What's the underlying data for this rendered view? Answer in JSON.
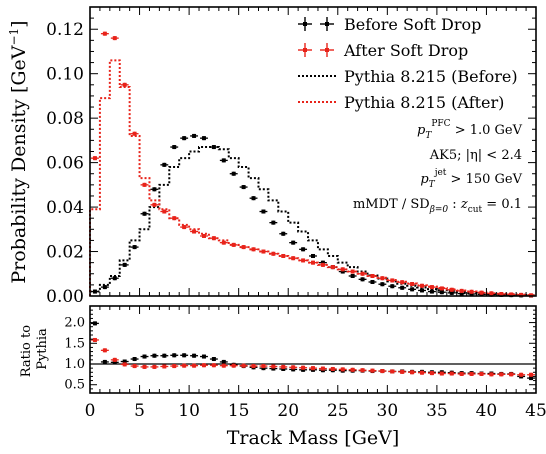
{
  "chart_data": [
    {
      "panel": "main",
      "type": "line",
      "xlabel": "Track Mass [GeV]",
      "ylabel": "Probability Density [GeV⁻¹]",
      "xlim": [
        0,
        45
      ],
      "ylim": [
        0,
        0.13
      ],
      "xticks": [
        "0",
        "5",
        "10",
        "15",
        "20",
        "25",
        "30",
        "35",
        "40",
        "45"
      ],
      "yticks": [
        "0.00",
        "0.02",
        "0.04",
        "0.06",
        "0.08",
        "0.10",
        "0.12"
      ],
      "legend_position": "top-right",
      "bin_edges": [
        0,
        1,
        2,
        3,
        4,
        5,
        6,
        7,
        8,
        9,
        10,
        11,
        12,
        13,
        14,
        15,
        16,
        17,
        18,
        19,
        20,
        21,
        22,
        23,
        24,
        25,
        26,
        27,
        28,
        29,
        30,
        31,
        32,
        33,
        34,
        35,
        36,
        37,
        38,
        39,
        40,
        41,
        42,
        43,
        44,
        45
      ],
      "series": [
        {
          "name": "Before Soft Drop",
          "style": "points",
          "color": "#000000",
          "values": [
            0.002,
            0.004,
            0.008,
            0.014,
            0.022,
            0.037,
            0.048,
            0.059,
            0.067,
            0.071,
            0.072,
            0.071,
            0.067,
            0.061,
            0.055,
            0.049,
            0.044,
            0.038,
            0.033,
            0.028,
            0.024,
            0.021,
            0.018,
            0.015,
            0.013,
            0.011,
            0.009,
            0.0075,
            0.0063,
            0.0053,
            0.0044,
            0.0037,
            0.003,
            0.0025,
            0.002,
            0.0017,
            0.0014,
            0.0011,
            0.0009,
            0.0007,
            0.0006,
            0.0005,
            0.0004,
            0.0003,
            0.0002
          ]
        },
        {
          "name": "After Soft Drop",
          "style": "points",
          "color": "#e8231a",
          "values": [
            0.062,
            0.118,
            0.116,
            0.095,
            0.073,
            0.05,
            0.041,
            0.038,
            0.035,
            0.031,
            0.029,
            0.027,
            0.026,
            0.024,
            0.023,
            0.022,
            0.021,
            0.02,
            0.019,
            0.018,
            0.017,
            0.016,
            0.015,
            0.014,
            0.013,
            0.012,
            0.011,
            0.01,
            0.009,
            0.008,
            0.007,
            0.0062,
            0.0054,
            0.0046,
            0.004,
            0.0034,
            0.0028,
            0.0023,
            0.0019,
            0.0015,
            0.0012,
            0.0009,
            0.0007,
            0.0005,
            0.0003
          ]
        },
        {
          "name": "Pythia 8.215 (Before)",
          "style": "dotted-step",
          "color": "#000000",
          "values": [
            0.002,
            0.005,
            0.009,
            0.016,
            0.025,
            0.03,
            0.04,
            0.05,
            0.058,
            0.062,
            0.065,
            0.067,
            0.067,
            0.066,
            0.062,
            0.058,
            0.053,
            0.048,
            0.043,
            0.038,
            0.033,
            0.029,
            0.025,
            0.021,
            0.018,
            0.015,
            0.013,
            0.011,
            0.0092,
            0.0078,
            0.0066,
            0.0055,
            0.0046,
            0.0038,
            0.0031,
            0.0026,
            0.0021,
            0.0017,
            0.0014,
            0.0011,
            0.0009,
            0.0007,
            0.0005,
            0.0004,
            0.0003
          ]
        },
        {
          "name": "Pythia 8.215 (After)",
          "style": "dotted-step",
          "color": "#e8231a",
          "values": [
            0.039,
            0.089,
            0.106,
            0.094,
            0.072,
            0.053,
            0.043,
            0.039,
            0.035,
            0.032,
            0.03,
            0.028,
            0.026,
            0.025,
            0.023,
            0.022,
            0.021,
            0.02,
            0.019,
            0.018,
            0.017,
            0.016,
            0.015,
            0.014,
            0.013,
            0.012,
            0.011,
            0.01,
            0.009,
            0.0082,
            0.0072,
            0.0064,
            0.0056,
            0.0048,
            0.0042,
            0.0036,
            0.003,
            0.0025,
            0.002,
            0.0016,
            0.0012,
            0.001,
            0.0008,
            0.0006,
            0.0004
          ]
        }
      ],
      "annotations": [
        "p_T^PFC > 1.0 GeV",
        "AK5; |η| < 2.4",
        "p_T^jet > 150 GeV",
        "mMDT / SD_β=0 : z_cut = 0.1"
      ]
    },
    {
      "panel": "ratio",
      "type": "line",
      "ylabel": "Ratio to Pythia",
      "xlim": [
        0,
        45
      ],
      "ylim": [
        0.3,
        2.4
      ],
      "yticks": [
        "0.5",
        "1.0",
        "1.5",
        "2.0"
      ],
      "reference_line": 1.0,
      "series": [
        {
          "name": "Before Soft Drop",
          "color": "#000000",
          "values": [
            1.98,
            1.05,
            1.04,
            1.06,
            1.12,
            1.18,
            1.2,
            1.2,
            1.21,
            1.21,
            1.2,
            1.18,
            1.12,
            1.05,
            0.98,
            0.95,
            0.92,
            0.9,
            0.89,
            0.88,
            0.87,
            0.86,
            0.86,
            0.85,
            0.85,
            0.84,
            0.84,
            0.84,
            0.83,
            0.83,
            0.82,
            0.82,
            0.81,
            0.81,
            0.8,
            0.8,
            0.79,
            0.78,
            0.78,
            0.77,
            0.77,
            0.76,
            0.76,
            0.7,
            0.66
          ]
        },
        {
          "name": "After Soft Drop",
          "color": "#e8231a",
          "values": [
            1.58,
            1.33,
            1.1,
            0.99,
            0.95,
            0.93,
            0.93,
            0.94,
            0.95,
            0.96,
            0.96,
            0.97,
            0.97,
            0.96,
            0.96,
            0.96,
            0.95,
            0.95,
            0.94,
            0.93,
            0.92,
            0.91,
            0.9,
            0.89,
            0.88,
            0.87,
            0.86,
            0.85,
            0.84,
            0.83,
            0.82,
            0.81,
            0.8,
            0.79,
            0.78,
            0.77,
            0.77,
            0.76,
            0.76,
            0.76,
            0.75,
            0.75,
            0.75,
            0.74,
            0.74
          ]
        }
      ]
    }
  ]
}
